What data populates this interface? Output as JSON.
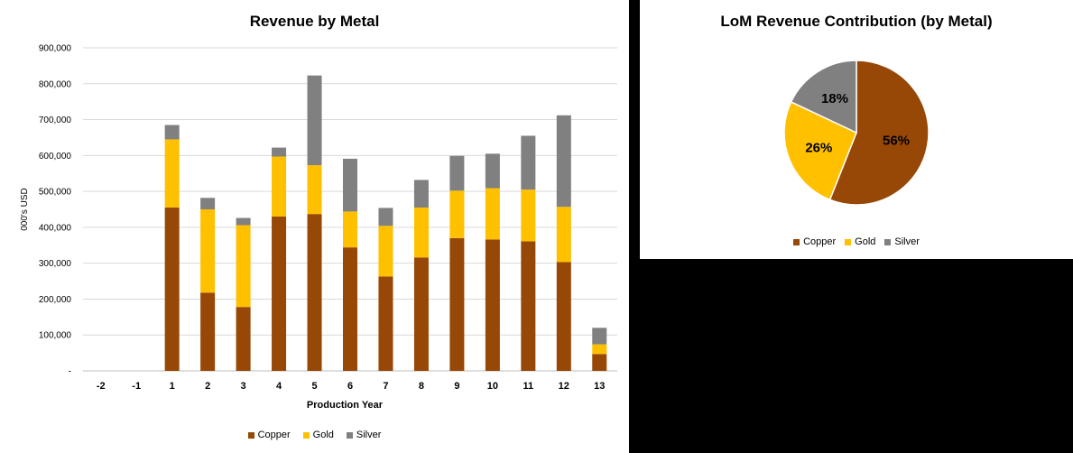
{
  "chart_data": [
    {
      "type": "bar",
      "stacked": true,
      "title": "Revenue by Metal",
      "xlabel": "Production Year",
      "ylabel": "000's USD",
      "ylim": [
        0,
        900000
      ],
      "yticks": [
        "-",
        "100,000",
        "200,000",
        "300,000",
        "400,000",
        "500,000",
        "600,000",
        "700,000",
        "800,000",
        "900,000"
      ],
      "grid": true,
      "legend_position": "bottom",
      "categories": [
        "-2",
        "-1",
        "1",
        "2",
        "3",
        "4",
        "5",
        "6",
        "7",
        "8",
        "9",
        "10",
        "11",
        "12",
        "13"
      ],
      "series": [
        {
          "name": "Copper",
          "color": "#974706",
          "values": [
            0,
            0,
            455000,
            218000,
            178000,
            430000,
            437000,
            344000,
            263000,
            316000,
            370000,
            366000,
            361000,
            303000,
            47000
          ]
        },
        {
          "name": "Gold",
          "color": "#FFC000",
          "values": [
            0,
            0,
            190000,
            232000,
            228000,
            167000,
            136000,
            100000,
            141000,
            139000,
            132000,
            143000,
            144000,
            154000,
            27000
          ]
        },
        {
          "name": "Silver",
          "color": "#808080",
          "values": [
            0,
            0,
            40000,
            32000,
            20000,
            25000,
            250000,
            147000,
            50000,
            77000,
            97000,
            96000,
            150000,
            255000,
            46000
          ]
        }
      ]
    },
    {
      "type": "pie",
      "title": "LoM Revenue Contribution  (by Metal)",
      "legend_position": "bottom",
      "slices": [
        {
          "name": "Copper",
          "value": 56,
          "label": "56%",
          "color": "#974706"
        },
        {
          "name": "Gold",
          "value": 26,
          "label": "26%",
          "color": "#FFC000"
        },
        {
          "name": "Silver",
          "value": 18,
          "label": "18%",
          "color": "#808080"
        }
      ]
    }
  ]
}
